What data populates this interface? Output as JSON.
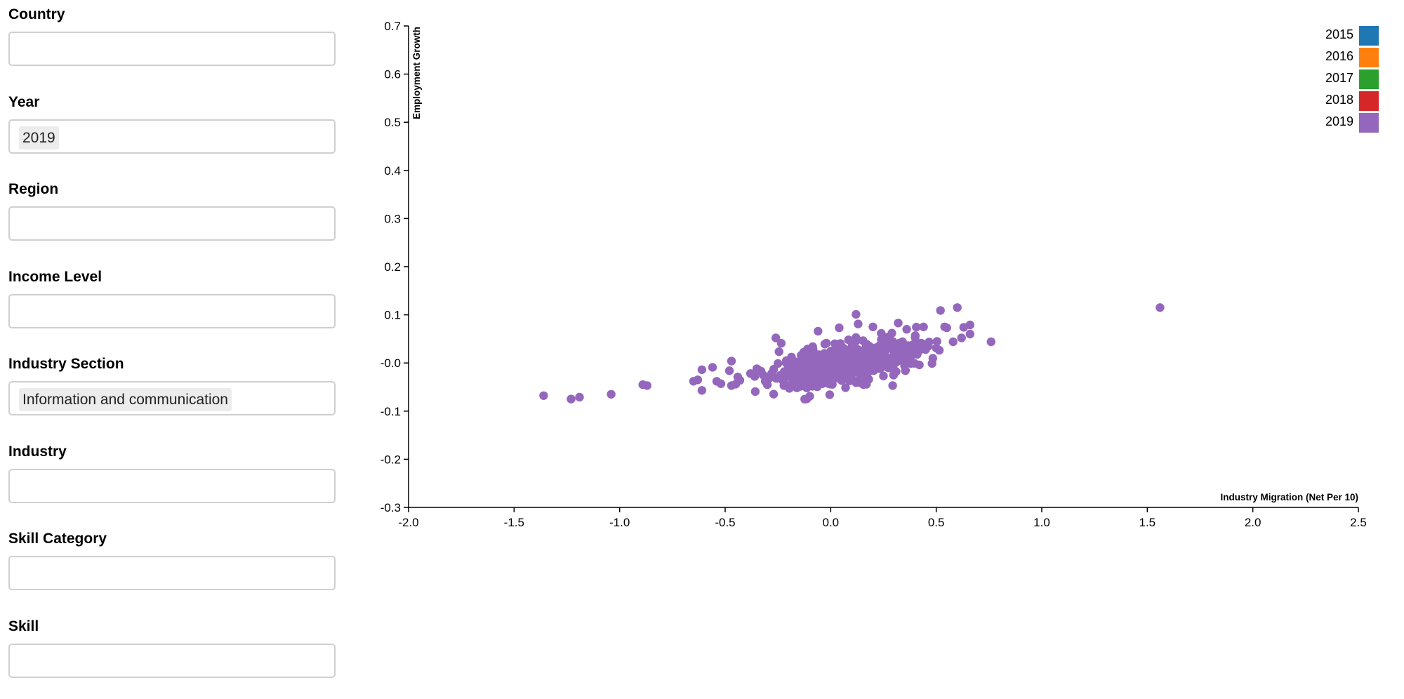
{
  "filters": [
    {
      "key": "country",
      "label": "Country",
      "selected": ""
    },
    {
      "key": "year",
      "label": "Year",
      "selected": "2019"
    },
    {
      "key": "region",
      "label": "Region",
      "selected": ""
    },
    {
      "key": "income-level",
      "label": "Income Level",
      "selected": ""
    },
    {
      "key": "industry-section",
      "label": "Industry Section",
      "selected": "Information and communication"
    },
    {
      "key": "industry",
      "label": "Industry",
      "selected": ""
    },
    {
      "key": "skill-category",
      "label": "Skill Category",
      "selected": ""
    },
    {
      "key": "skill",
      "label": "Skill",
      "selected": ""
    }
  ],
  "chart_data": {
    "type": "scatter",
    "title": "",
    "xlabel": "Industry Migration (Net Per 10)",
    "ylabel": "Employment Growth",
    "xlim": [
      -2.0,
      2.5
    ],
    "ylim": [
      -0.3,
      0.7
    ],
    "x_ticks": [
      "-2.0",
      "-1.5",
      "-1.0",
      "-0.5",
      "0.0",
      "0.5",
      "1.0",
      "1.5",
      "2.0",
      "2.5"
    ],
    "y_ticks": [
      "-0.3",
      "-0.2",
      "-0.1",
      "-0.0",
      "0.1",
      "0.2",
      "0.3",
      "0.4",
      "0.5",
      "0.6",
      "0.7"
    ],
    "grid": false,
    "legend": {
      "position": "top-right",
      "entries": [
        {
          "label": "2015",
          "color": "#1f77b4"
        },
        {
          "label": "2016",
          "color": "#ff7f0e"
        },
        {
          "label": "2017",
          "color": "#2ca02c"
        },
        {
          "label": "2018",
          "color": "#d62728"
        },
        {
          "label": "2019",
          "color": "#9467bd"
        }
      ]
    },
    "series": [
      {
        "year": "2019",
        "color": "#9467bd",
        "points": [
          [
            -1.36,
            -0.068
          ],
          [
            -1.23,
            -0.075
          ],
          [
            -1.19,
            -0.071
          ],
          [
            -1.04,
            -0.065
          ],
          [
            -0.89,
            -0.045
          ],
          [
            -0.87,
            -0.047
          ],
          [
            -0.65,
            -0.038
          ],
          [
            -0.63,
            -0.035
          ],
          [
            -0.61,
            -0.057
          ],
          [
            -0.61,
            -0.014
          ],
          [
            -0.56,
            -0.009
          ],
          [
            -0.54,
            -0.038
          ],
          [
            -0.52,
            -0.043
          ],
          [
            -0.48,
            -0.016
          ],
          [
            -0.47,
            0.004
          ],
          [
            -0.47,
            -0.047
          ],
          [
            -0.45,
            -0.044
          ],
          [
            -0.44,
            -0.029
          ],
          [
            -0.43,
            -0.036
          ],
          [
            -0.38,
            -0.022
          ],
          [
            -0.36,
            -0.028
          ],
          [
            -0.35,
            -0.012
          ],
          [
            -0.33,
            -0.017
          ],
          [
            -0.32,
            -0.025
          ],
          [
            -0.31,
            -0.038
          ],
          [
            -0.3,
            -0.045
          ],
          [
            -0.29,
            -0.031
          ],
          [
            -0.28,
            -0.022
          ],
          [
            -0.27,
            -0.013
          ],
          [
            -0.26,
            0.052
          ],
          [
            -0.25,
            -0.001
          ],
          [
            -0.24,
            -0.026
          ],
          [
            -0.23,
            -0.035
          ],
          [
            -0.22,
            -0.018
          ],
          [
            -0.21,
            0.005
          ],
          [
            -0.2,
            -0.009
          ],
          [
            -0.19,
            -0.028
          ],
          [
            -0.18,
            -0.04
          ],
          [
            -0.17,
            -0.014
          ],
          [
            -0.16,
            0.002
          ],
          [
            -0.15,
            -0.022
          ],
          [
            -0.14,
            0.016
          ],
          [
            -0.13,
            -0.031
          ],
          [
            -0.12,
            -0.005
          ],
          [
            -0.11,
            0.029
          ],
          [
            -0.1,
            -0.017
          ],
          [
            -0.09,
            -0.036
          ],
          [
            -0.08,
            0.009
          ],
          [
            -0.07,
            -0.026
          ],
          [
            -0.06,
            0.066
          ],
          [
            -0.05,
            -0.01
          ],
          [
            -0.04,
            -0.043
          ],
          [
            -0.03,
            0.02
          ],
          [
            -0.02,
            -0.021
          ],
          [
            -0.01,
            0.001
          ],
          [
            0.0,
            -0.033
          ],
          [
            0.0,
            0.013
          ],
          [
            0.01,
            -0.015
          ],
          [
            0.02,
            0.04
          ],
          [
            0.03,
            -0.006
          ],
          [
            0.04,
            0.073
          ],
          [
            0.05,
            -0.029
          ],
          [
            0.06,
            0.031
          ],
          [
            0.07,
            -0.011
          ],
          [
            0.08,
            0.008
          ],
          [
            0.09,
            -0.037
          ],
          [
            0.1,
            0.024
          ],
          [
            0.11,
            -0.02
          ],
          [
            0.12,
            0.046
          ],
          [
            0.13,
            0.003
          ],
          [
            0.12,
            0.101
          ],
          [
            0.13,
            0.081
          ],
          [
            0.14,
            -0.025
          ],
          [
            0.15,
            0.017
          ],
          [
            0.16,
            -0.008
          ],
          [
            0.17,
            0.039
          ],
          [
            0.18,
            -0.034
          ],
          [
            0.19,
            0.01
          ],
          [
            0.2,
            0.075
          ],
          [
            0.21,
            -0.013
          ],
          [
            0.22,
            0.027
          ],
          [
            0.23,
            -0.002
          ],
          [
            0.24,
            0.049
          ],
          [
            0.25,
            -0.027
          ],
          [
            0.26,
            0.012
          ],
          [
            0.27,
            0.035
          ],
          [
            0.28,
            -0.01
          ],
          [
            0.29,
            0.062
          ],
          [
            0.3,
            0.021
          ],
          [
            0.31,
            -0.018
          ],
          [
            0.32,
            0.083
          ],
          [
            0.33,
            0.006
          ],
          [
            0.34,
            0.044
          ],
          [
            0.35,
            -0.006
          ],
          [
            0.36,
            0.07
          ],
          [
            0.37,
            0.023
          ],
          [
            0.38,
            -0.001
          ],
          [
            0.39,
            0.038
          ],
          [
            0.4,
            0.053
          ],
          [
            0.41,
            0.018
          ],
          [
            0.42,
            -0.004
          ],
          [
            0.43,
            0.041
          ],
          [
            0.44,
            0.075
          ],
          [
            0.45,
            0.028
          ],
          [
            0.46,
            0.034
          ],
          [
            0.48,
            -0.001
          ],
          [
            0.5,
            0.031
          ],
          [
            0.52,
            0.109
          ],
          [
            0.54,
            0.075
          ],
          [
            0.55,
            0.073
          ],
          [
            0.58,
            0.044
          ],
          [
            0.6,
            0.115
          ],
          [
            0.62,
            0.052
          ],
          [
            0.63,
            0.074
          ],
          [
            0.66,
            0.079
          ],
          [
            0.66,
            0.06
          ],
          [
            0.76,
            0.044
          ],
          [
            1.56,
            0.115
          ]
        ],
        "dense_cluster": [
          {
            "center": [
              0.03,
              -0.005
            ],
            "spread": [
              0.17,
              0.024
            ],
            "count": 320
          },
          {
            "center": [
              0.22,
              0.015
            ],
            "spread": [
              0.12,
              0.018
            ],
            "count": 140
          }
        ]
      }
    ]
  }
}
